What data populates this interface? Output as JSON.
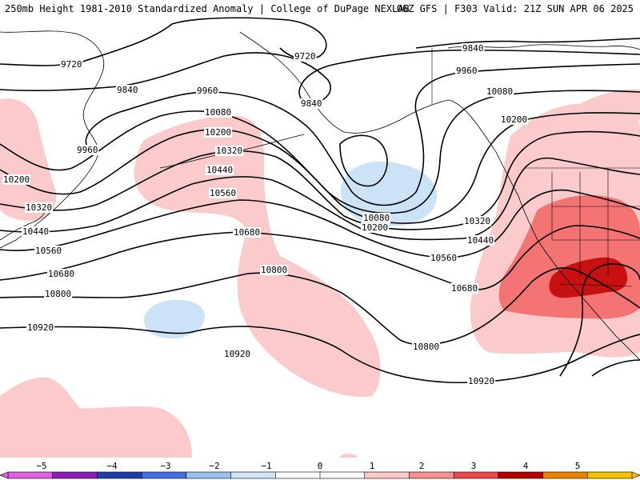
{
  "header": {
    "title_left": "250mb Height 1981-2010 Standardized Anomaly | College of DuPage NEXLAB",
    "title_right": "06Z GFS | F303 Valid: 21Z SUN APR 06 2025"
  },
  "contour_labels": [
    "9720",
    "9720",
    "9840",
    "9840",
    "9840",
    "9960",
    "9960",
    "9960",
    "10080",
    "10080",
    "10080",
    "10200",
    "10200",
    "10200",
    "10200",
    "10320",
    "10320",
    "10320",
    "10440",
    "10440",
    "10440",
    "10560",
    "10560",
    "10560",
    "10680",
    "10680",
    "10680",
    "10800",
    "10800",
    "10800",
    "10920",
    "10920",
    "10920"
  ],
  "colorbar": {
    "ticks": [
      "−5",
      "−4",
      "−3",
      "−2",
      "−1",
      "0",
      "1",
      "2",
      "3",
      "4",
      "5"
    ],
    "colors": [
      "#e060e0",
      "#8b1fb5",
      "#1f3fa8",
      "#3f6fe0",
      "#9ac0ee",
      "#cfe3f6",
      "#ffffff",
      "#ffffff",
      "#ffc8c8",
      "#f59090",
      "#e84848",
      "#b00000",
      "#e88000",
      "#f5c000"
    ]
  },
  "anomaly_colors": {
    "light_positive": "#fbcaca",
    "medium_positive": "#f47474",
    "strong_positive": "#c81010",
    "light_negative": "#cce3f7"
  }
}
